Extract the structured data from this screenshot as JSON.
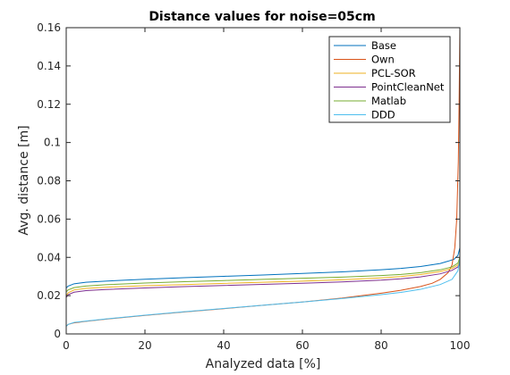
{
  "chart_data": {
    "type": "line",
    "title": "Distance values for noise=05cm",
    "xlabel": "Analyzed data [%]",
    "ylabel": "Avg. distance [m]",
    "xlim": [
      0,
      100
    ],
    "ylim": [
      0,
      0.16
    ],
    "xticks": [
      0,
      20,
      40,
      60,
      80,
      100
    ],
    "yticks": [
      0,
      0.02,
      0.04,
      0.06,
      0.08,
      0.1,
      0.12,
      0.14,
      0.16
    ],
    "xtick_labels": [
      "0",
      "20",
      "40",
      "60",
      "80",
      "100"
    ],
    "ytick_labels": [
      "0",
      "0.02",
      "0.04",
      "0.06",
      "0.08",
      "0.1",
      "0.12",
      "0.14",
      "0.16"
    ],
    "grid": false,
    "legend_position": "top-right",
    "series": [
      {
        "name": "Base",
        "color": "#0072bd",
        "points": [
          [
            0,
            0.024
          ],
          [
            0.5,
            0.025
          ],
          [
            2,
            0.0262
          ],
          [
            5,
            0.027
          ],
          [
            10,
            0.0276
          ],
          [
            20,
            0.0286
          ],
          [
            30,
            0.0294
          ],
          [
            40,
            0.0301
          ],
          [
            50,
            0.0308
          ],
          [
            60,
            0.0316
          ],
          [
            70,
            0.0324
          ],
          [
            80,
            0.0335
          ],
          [
            85,
            0.0342
          ],
          [
            90,
            0.0352
          ],
          [
            95,
            0.0368
          ],
          [
            97,
            0.038
          ],
          [
            98.5,
            0.039
          ],
          [
            99.5,
            0.041
          ],
          [
            100,
            0.045
          ]
        ]
      },
      {
        "name": "Own",
        "color": "#d95319",
        "points": [
          [
            0,
            0.004
          ],
          [
            0.5,
            0.005
          ],
          [
            2,
            0.0058
          ],
          [
            5,
            0.0066
          ],
          [
            10,
            0.0077
          ],
          [
            20,
            0.0097
          ],
          [
            30,
            0.0115
          ],
          [
            40,
            0.0132
          ],
          [
            50,
            0.015
          ],
          [
            60,
            0.0167
          ],
          [
            70,
            0.0187
          ],
          [
            80,
            0.0213
          ],
          [
            85,
            0.0228
          ],
          [
            90,
            0.0248
          ],
          [
            93,
            0.0265
          ],
          [
            95,
            0.0285
          ],
          [
            97,
            0.032
          ],
          [
            98,
            0.036
          ],
          [
            98.7,
            0.045
          ],
          [
            99.2,
            0.06
          ],
          [
            99.6,
            0.09
          ],
          [
            99.8,
            0.12
          ],
          [
            100,
            0.16
          ]
        ]
      },
      {
        "name": "PCL-SOR",
        "color": "#edb120",
        "points": [
          [
            0,
            0.02
          ],
          [
            0.5,
            0.0215
          ],
          [
            2,
            0.023
          ],
          [
            5,
            0.0238
          ],
          [
            10,
            0.0244
          ],
          [
            20,
            0.0252
          ],
          [
            30,
            0.0258
          ],
          [
            40,
            0.0264
          ],
          [
            50,
            0.027
          ],
          [
            60,
            0.0276
          ],
          [
            70,
            0.0283
          ],
          [
            80,
            0.0293
          ],
          [
            85,
            0.03
          ],
          [
            90,
            0.031
          ],
          [
            95,
            0.0326
          ],
          [
            98,
            0.0342
          ],
          [
            99.5,
            0.036
          ],
          [
            100,
            0.038
          ]
        ]
      },
      {
        "name": "PointCleanNet",
        "color": "#7e2f8e",
        "points": [
          [
            0,
            0.019
          ],
          [
            0.5,
            0.0205
          ],
          [
            2,
            0.0218
          ],
          [
            5,
            0.0226
          ],
          [
            10,
            0.0232
          ],
          [
            20,
            0.024
          ],
          [
            30,
            0.0247
          ],
          [
            40,
            0.0253
          ],
          [
            50,
            0.0259
          ],
          [
            60,
            0.0265
          ],
          [
            70,
            0.0272
          ],
          [
            80,
            0.0281
          ],
          [
            85,
            0.0288
          ],
          [
            90,
            0.0298
          ],
          [
            95,
            0.0314
          ],
          [
            98,
            0.0332
          ],
          [
            99.5,
            0.035
          ],
          [
            100,
            0.037
          ]
        ]
      },
      {
        "name": "Matlab",
        "color": "#77ac30",
        "points": [
          [
            0,
            0.022
          ],
          [
            0.5,
            0.023
          ],
          [
            2,
            0.0242
          ],
          [
            5,
            0.025
          ],
          [
            10,
            0.0257
          ],
          [
            20,
            0.0266
          ],
          [
            30,
            0.0273
          ],
          [
            40,
            0.0279
          ],
          [
            50,
            0.0285
          ],
          [
            60,
            0.0291
          ],
          [
            70,
            0.0297
          ],
          [
            80,
            0.0305
          ],
          [
            85,
            0.0311
          ],
          [
            90,
            0.032
          ],
          [
            95,
            0.0335
          ],
          [
            98,
            0.035
          ],
          [
            99.5,
            0.037
          ],
          [
            100,
            0.04
          ]
        ]
      },
      {
        "name": "DDD",
        "color": "#4dbeee",
        "points": [
          [
            0,
            0.004
          ],
          [
            0.5,
            0.005
          ],
          [
            2,
            0.006
          ],
          [
            5,
            0.0067
          ],
          [
            10,
            0.0078
          ],
          [
            20,
            0.0098
          ],
          [
            30,
            0.0116
          ],
          [
            40,
            0.0133
          ],
          [
            50,
            0.015
          ],
          [
            60,
            0.0167
          ],
          [
            70,
            0.0185
          ],
          [
            80,
            0.0205
          ],
          [
            85,
            0.0217
          ],
          [
            90,
            0.0233
          ],
          [
            95,
            0.0258
          ],
          [
            98,
            0.0285
          ],
          [
            99.5,
            0.033
          ],
          [
            100,
            0.039
          ]
        ]
      }
    ]
  }
}
